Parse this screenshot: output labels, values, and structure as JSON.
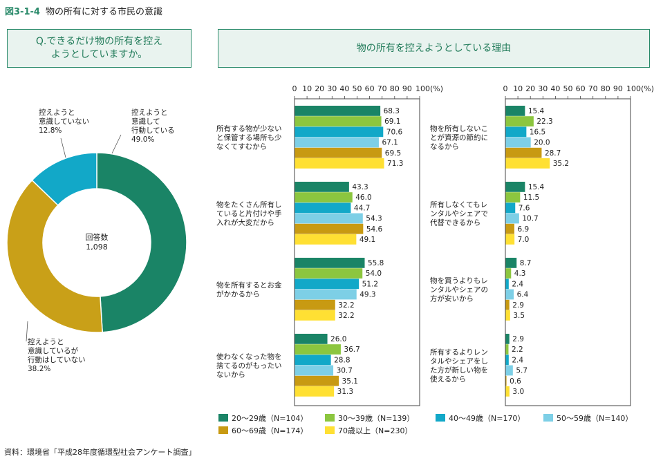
{
  "header": {
    "figure_number": "図3-1-4",
    "title": "物の所有に対する市民の意識"
  },
  "question": {
    "line1": "Q.できるだけ物の所有を控え",
    "line2": "ようとしていますか。"
  },
  "reasons_title": "物の所有を控えようとしている理由",
  "source": "資料：環境省「平成28年度循環型社会アンケート調査」",
  "colors": [
    "#1a8466",
    "#8cc63f",
    "#12a8c8",
    "#7dcfe6",
    "#c89a12",
    "#ffe033"
  ],
  "chart_data": [
    {
      "type": "pie",
      "style": "donut",
      "center_label": [
        "回答数",
        "1,098"
      ],
      "slices": [
        {
          "label": [
            "控えようと",
            "意識して",
            "行動している",
            "49.0%"
          ],
          "value": 49.0,
          "color": "#1a8466"
        },
        {
          "label": [
            "控えようと",
            "意識しているが",
            "行動はしていない",
            "38.2%"
          ],
          "value": 38.2,
          "color": "#c9a018"
        },
        {
          "label": [
            "控えようと",
            "意識していない",
            "12.8%"
          ],
          "value": 12.8,
          "color": "#12a8c8"
        }
      ]
    },
    {
      "type": "bar",
      "orientation": "horizontal",
      "xlim": [
        0,
        100
      ],
      "tick_labels": [
        "0",
        "10",
        "20",
        "30",
        "40",
        "50",
        "60",
        "70",
        "80",
        "90",
        "100(%)"
      ],
      "series_names": [
        "20～29歳（N=104）",
        "30～39歳（N=139）",
        "40～49歳（N=170）",
        "50～59歳（N=140）",
        "60～69歳（N=174）",
        "70歳以上（N=230）"
      ],
      "groups": [
        {
          "label": [
            "所有する物が少ない",
            "と保管する場所も少",
            "なくてすむから"
          ],
          "values": [
            68.3,
            69.1,
            70.6,
            67.1,
            69.5,
            71.3
          ]
        },
        {
          "label": [
            "物をたくさん所有し",
            "ていると片付けや手",
            "入れが大変だから"
          ],
          "values": [
            43.3,
            46.0,
            44.7,
            54.3,
            54.6,
            49.1
          ]
        },
        {
          "label": [
            "物を所有するとお金",
            "がかかるから"
          ],
          "values": [
            55.8,
            54.0,
            51.2,
            49.3,
            32.2,
            32.2
          ]
        },
        {
          "label": [
            "使わなくなった物を",
            "捨てるのがもったい",
            "ないから"
          ],
          "values": [
            26.0,
            36.7,
            28.8,
            30.7,
            35.1,
            31.3
          ]
        }
      ]
    },
    {
      "type": "bar",
      "orientation": "horizontal",
      "xlim": [
        0,
        100
      ],
      "tick_labels": [
        "0",
        "10",
        "20",
        "30",
        "40",
        "50",
        "60",
        "70",
        "80",
        "90",
        "100(%)"
      ],
      "series_names": [
        "20～29歳（N=104）",
        "30～39歳（N=139）",
        "40～49歳（N=170）",
        "50～59歳（N=140）",
        "60～69歳（N=174）",
        "70歳以上（N=230）"
      ],
      "groups": [
        {
          "label": [
            "物を所有しないこ",
            "とが資源の節約に",
            "なるから"
          ],
          "values": [
            15.4,
            22.3,
            16.5,
            20.0,
            28.7,
            35.2
          ]
        },
        {
          "label": [
            "所有しなくてもレ",
            "ンタルやシェアで",
            "代替できるから"
          ],
          "values": [
            15.4,
            11.5,
            7.6,
            10.7,
            6.9,
            7.0
          ]
        },
        {
          "label": [
            "物を買うよりもレ",
            "ンタルやシェアの",
            "方が安いから"
          ],
          "values": [
            8.7,
            4.3,
            2.4,
            6.4,
            2.9,
            3.5
          ]
        },
        {
          "label": [
            "所有するよりレン",
            "タルやシェアをし",
            "た方が新しい物を",
            "使えるから"
          ],
          "values": [
            2.9,
            2.2,
            2.4,
            5.7,
            0.6,
            3.0
          ]
        }
      ]
    }
  ],
  "legend": [
    {
      "label": "20～29歳（N=104）",
      "color": "#1a8466"
    },
    {
      "label": "30～39歳（N=139）",
      "color": "#8cc63f"
    },
    {
      "label": "40～49歳（N=170）",
      "color": "#12a8c8"
    },
    {
      "label": "50～59歳（N=140）",
      "color": "#7dcfe6"
    },
    {
      "label": "60～69歳（N=174）",
      "color": "#c89a12"
    },
    {
      "label": "70歳以上（N=230）",
      "color": "#ffe033"
    }
  ]
}
